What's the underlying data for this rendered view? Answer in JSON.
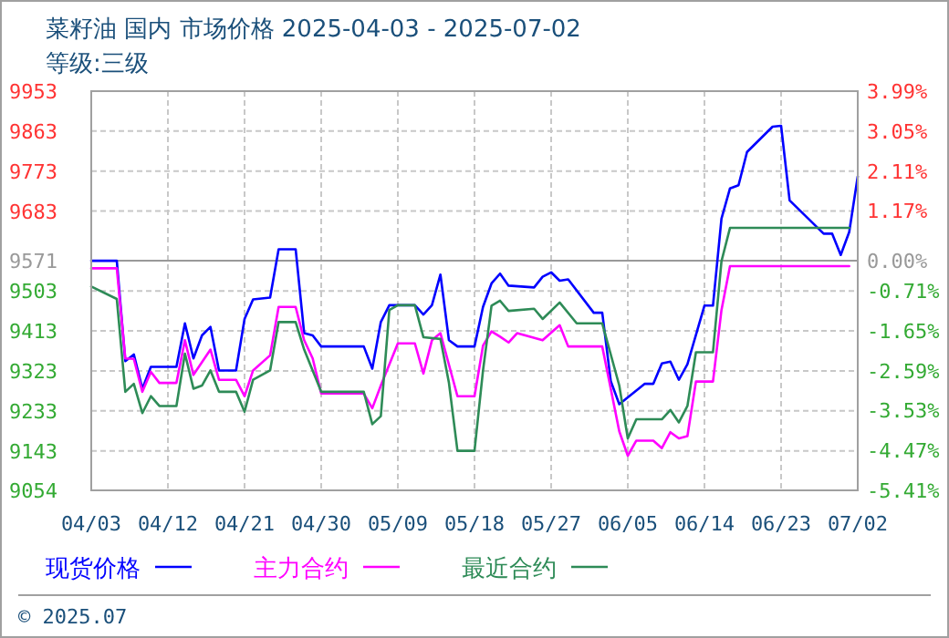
{
  "chart_data": {
    "type": "line",
    "title": "菜籽油 国内 市场价格 2025-04-03 - 2025-07-02",
    "subtitle": "等级:三级",
    "annotations": [
      "© 2025.07"
    ],
    "xlim": [
      "2025-04-03",
      "2025-07-02"
    ],
    "xticks": [
      {
        "value": "2025-04-03",
        "label": "04/03"
      },
      {
        "value": "2025-04-12",
        "label": "04/12"
      },
      {
        "value": "2025-04-21",
        "label": "04/21"
      },
      {
        "value": "2025-04-30",
        "label": "04/30"
      },
      {
        "value": "2025-05-09",
        "label": "05/09"
      },
      {
        "value": "2025-05-18",
        "label": "05/18"
      },
      {
        "value": "2025-05-27",
        "label": "05/27"
      },
      {
        "value": "2025-06-05",
        "label": "06/05"
      },
      {
        "value": "2025-06-14",
        "label": "06/14"
      },
      {
        "value": "2025-06-23",
        "label": "06/23"
      },
      {
        "value": "2025-07-02",
        "label": "07/02"
      }
    ],
    "ylim": [
      9054,
      9953
    ],
    "yticks": [
      9054,
      9143,
      9233,
      9323,
      9413,
      9503,
      9571,
      9683,
      9773,
      9863,
      9953
    ],
    "y2lim": [
      -5.41,
      3.99
    ],
    "y2ticks": [
      {
        "value": -5.41,
        "label": "-5.41%"
      },
      {
        "value": -4.47,
        "label": "-4.47%"
      },
      {
        "value": -3.53,
        "label": "-3.53%"
      },
      {
        "value": -2.59,
        "label": "-2.59%"
      },
      {
        "value": -1.65,
        "label": "-1.65%"
      },
      {
        "value": -0.71,
        "label": "-0.71%"
      },
      {
        "value": 0,
        "label": "0.00%"
      },
      {
        "value": 1.17,
        "label": "1.17%"
      },
      {
        "value": 2.11,
        "label": "2.11%"
      },
      {
        "value": 3.05,
        "label": "3.05%"
      },
      {
        "value": 3.99,
        "label": "3.99%"
      }
    ],
    "grid": true,
    "legend": "bottom",
    "ref_lines": [
      {
        "axis": "y",
        "value": 9571,
        "color": "#999999"
      }
    ],
    "series": [
      {
        "name": "现货价格",
        "color": "#0000ff",
        "x": [
          "2025-04-03",
          "2025-04-06",
          "2025-04-07",
          "2025-04-08",
          "2025-04-09",
          "2025-04-10",
          "2025-04-13",
          "2025-04-14",
          "2025-04-15",
          "2025-04-16",
          "2025-04-17",
          "2025-04-18",
          "2025-04-20",
          "2025-04-21",
          "2025-04-22",
          "2025-04-24",
          "2025-04-25",
          "2025-04-27",
          "2025-04-28",
          "2025-04-29",
          "2025-04-30",
          "2025-05-05",
          "2025-05-06",
          "2025-05-07",
          "2025-05-08",
          "2025-05-11",
          "2025-05-12",
          "2025-05-13",
          "2025-05-14",
          "2025-05-15",
          "2025-05-16",
          "2025-05-18",
          "2025-05-19",
          "2025-05-20",
          "2025-05-21",
          "2025-05-22",
          "2025-05-25",
          "2025-05-26",
          "2025-05-27",
          "2025-05-28",
          "2025-05-29",
          "2025-06-01",
          "2025-06-02",
          "2025-06-03",
          "2025-06-04",
          "2025-06-07",
          "2025-06-08",
          "2025-06-09",
          "2025-06-10",
          "2025-06-11",
          "2025-06-12",
          "2025-06-14",
          "2025-06-15",
          "2025-06-16",
          "2025-06-17",
          "2025-06-18",
          "2025-06-19",
          "2025-06-22",
          "2025-06-23",
          "2025-06-24",
          "2025-06-28",
          "2025-06-29",
          "2025-06-30",
          "2025-07-01",
          "2025-07-02"
        ],
        "values": [
          9571,
          9571,
          9345,
          9360,
          9283,
          9332,
          9332,
          9430,
          9351,
          9403,
          9422,
          9324,
          9324,
          9440,
          9484,
          9488,
          9597,
          9597,
          9408,
          9403,
          9378,
          9378,
          9328,
          9433,
          9471,
          9471,
          9450,
          9471,
          9540,
          9392,
          9378,
          9378,
          9467,
          9520,
          9542,
          9515,
          9511,
          9535,
          9545,
          9526,
          9529,
          9454,
          9454,
          9300,
          9248,
          9294,
          9294,
          9340,
          9344,
          9303,
          9338,
          9470,
          9470,
          9666,
          9734,
          9741,
          9816,
          9873,
          9875,
          9707,
          9632,
          9632,
          9584,
          9636,
          9761
        ]
      },
      {
        "name": "主力合约",
        "color": "#ff00ff",
        "x": [
          "2025-04-03",
          "2025-04-06",
          "2025-04-07",
          "2025-04-08",
          "2025-04-09",
          "2025-04-10",
          "2025-04-11",
          "2025-04-13",
          "2025-04-14",
          "2025-04-15",
          "2025-04-17",
          "2025-04-18",
          "2025-04-20",
          "2025-04-21",
          "2025-04-22",
          "2025-04-24",
          "2025-04-25",
          "2025-04-27",
          "2025-04-28",
          "2025-04-29",
          "2025-04-30",
          "2025-05-05",
          "2025-05-06",
          "2025-05-07",
          "2025-05-09",
          "2025-05-11",
          "2025-05-12",
          "2025-05-13",
          "2025-05-14",
          "2025-05-16",
          "2025-05-18",
          "2025-05-19",
          "2025-05-20",
          "2025-05-21",
          "2025-05-22",
          "2025-05-23",
          "2025-05-26",
          "2025-05-28",
          "2025-05-29",
          "2025-06-02",
          "2025-06-03",
          "2025-06-04",
          "2025-06-05",
          "2025-06-06",
          "2025-06-08",
          "2025-06-09",
          "2025-06-10",
          "2025-06-11",
          "2025-06-12",
          "2025-06-13",
          "2025-06-15",
          "2025-06-16",
          "2025-06-17",
          "2025-07-01"
        ],
        "values": [
          9554,
          9554,
          9351,
          9350,
          9276,
          9321,
          9296,
          9296,
          9392,
          9314,
          9371,
          9303,
          9303,
          9266,
          9324,
          9358,
          9467,
          9467,
          9392,
          9351,
          9272,
          9272,
          9239,
          9290,
          9385,
          9385,
          9317,
          9392,
          9408,
          9266,
          9266,
          9380,
          9412,
          9400,
          9387,
          9408,
          9392,
          9426,
          9378,
          9378,
          9283,
          9187,
          9132,
          9166,
          9166,
          9149,
          9185,
          9171,
          9176,
          9299,
          9299,
          9460,
          9559,
          9559
        ]
      },
      {
        "name": "最近合约",
        "color": "#2e8b57",
        "x": [
          "2025-04-03",
          "2025-04-06",
          "2025-04-07",
          "2025-04-08",
          "2025-04-09",
          "2025-04-10",
          "2025-04-11",
          "2025-04-13",
          "2025-04-14",
          "2025-04-15",
          "2025-04-16",
          "2025-04-17",
          "2025-04-18",
          "2025-04-20",
          "2025-04-21",
          "2025-04-22",
          "2025-04-24",
          "2025-04-25",
          "2025-04-27",
          "2025-04-28",
          "2025-04-30",
          "2025-05-05",
          "2025-05-06",
          "2025-05-07",
          "2025-05-08",
          "2025-05-09",
          "2025-05-11",
          "2025-05-12",
          "2025-05-14",
          "2025-05-15",
          "2025-05-16",
          "2025-05-18",
          "2025-05-19",
          "2025-05-20",
          "2025-05-21",
          "2025-05-22",
          "2025-05-25",
          "2025-05-26",
          "2025-05-28",
          "2025-05-30",
          "2025-06-02",
          "2025-06-04",
          "2025-06-05",
          "2025-06-06",
          "2025-06-09",
          "2025-06-10",
          "2025-06-11",
          "2025-06-12",
          "2025-06-13",
          "2025-06-15",
          "2025-06-16",
          "2025-06-17",
          "2025-07-01"
        ],
        "values": [
          9513,
          9485,
          9276,
          9294,
          9228,
          9266,
          9244,
          9244,
          9362,
          9283,
          9290,
          9324,
          9276,
          9276,
          9231,
          9303,
          9324,
          9433,
          9433,
          9371,
          9276,
          9276,
          9203,
          9221,
          9460,
          9471,
          9471,
          9399,
          9395,
          9296,
          9143,
          9143,
          9324,
          9470,
          9481,
          9458,
          9463,
          9440,
          9477,
          9430,
          9430,
          9290,
          9171,
          9214,
          9214,
          9235,
          9207,
          9244,
          9365,
          9365,
          9570,
          9645,
          9645
        ]
      }
    ]
  }
}
